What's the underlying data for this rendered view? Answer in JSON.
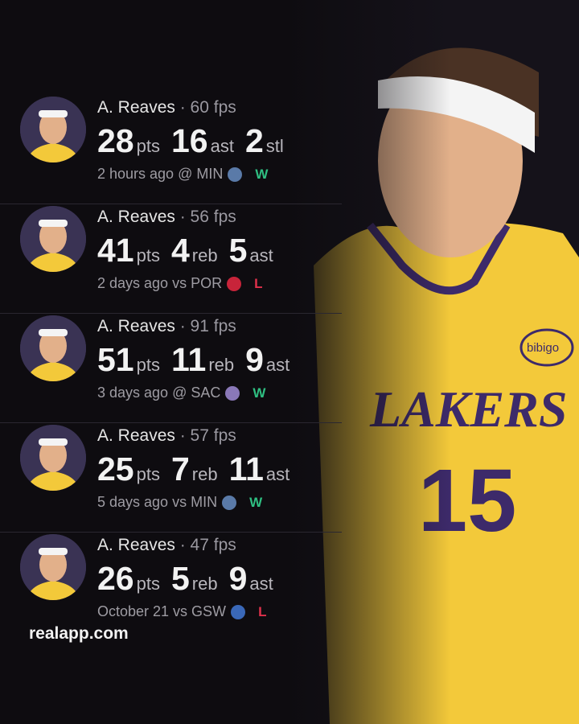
{
  "colors": {
    "win": "#2fbf82",
    "loss": "#e0314b",
    "background": "#0e0c10"
  },
  "games": [
    {
      "player": "A. Reaves",
      "fps": "· 60 fps",
      "stats": [
        {
          "value": "28",
          "unit": "pts"
        },
        {
          "value": "16",
          "unit": "ast"
        },
        {
          "value": "2",
          "unit": "stl"
        }
      ],
      "when": "2 hours ago @ MIN",
      "team_icon": "timberwolves-logo-icon",
      "result": "W"
    },
    {
      "player": "A. Reaves",
      "fps": "· 56 fps",
      "stats": [
        {
          "value": "41",
          "unit": "pts"
        },
        {
          "value": "4",
          "unit": "reb"
        },
        {
          "value": "5",
          "unit": "ast"
        }
      ],
      "when": "2 days ago vs POR",
      "team_icon": "trail-blazers-logo-icon",
      "result": "L"
    },
    {
      "player": "A. Reaves",
      "fps": "· 91 fps",
      "stats": [
        {
          "value": "51",
          "unit": "pts"
        },
        {
          "value": "11",
          "unit": "reb"
        },
        {
          "value": "9",
          "unit": "ast"
        }
      ],
      "when": "3 days ago @ SAC",
      "team_icon": "kings-logo-icon",
      "result": "W"
    },
    {
      "player": "A. Reaves",
      "fps": "· 57 fps",
      "stats": [
        {
          "value": "25",
          "unit": "pts"
        },
        {
          "value": "7",
          "unit": "reb"
        },
        {
          "value": "11",
          "unit": "ast"
        }
      ],
      "when": "5 days ago vs MIN",
      "team_icon": "timberwolves-logo-icon",
      "result": "W"
    },
    {
      "player": "A. Reaves",
      "fps": "· 47 fps",
      "stats": [
        {
          "value": "26",
          "unit": "pts"
        },
        {
          "value": "5",
          "unit": "reb"
        },
        {
          "value": "9",
          "unit": "ast"
        }
      ],
      "when": "October 21 vs GSW",
      "team_icon": "warriors-logo-icon",
      "result": "L"
    }
  ],
  "footer": "realapp.com",
  "photo": {
    "jersey_text": "LAKERS",
    "jersey_number": "15",
    "sponsor": "bibigo"
  }
}
